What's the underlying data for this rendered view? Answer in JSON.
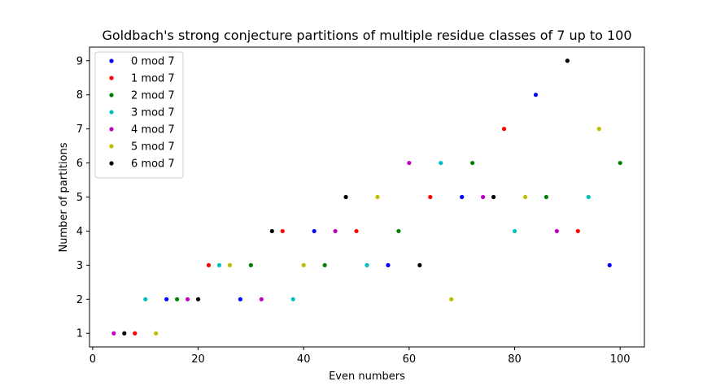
{
  "chart_data": {
    "type": "scatter",
    "title": "Goldbach's strong conjecture partitions of multiple residue classes of 7 up to 100",
    "xlabel": "Even numbers",
    "ylabel": "Number of partitions",
    "xlim": [
      -0.6,
      104.6
    ],
    "ylim": [
      0.6,
      9.4
    ],
    "xticks": [
      0,
      20,
      40,
      60,
      80,
      100
    ],
    "yticks": [
      1,
      2,
      3,
      4,
      5,
      6,
      7,
      8,
      9
    ],
    "grid": false,
    "legend_position": "top-left",
    "series": [
      {
        "name": "0 mod 7",
        "color": "#0000ff",
        "points": [
          [
            14,
            2
          ],
          [
            28,
            2
          ],
          [
            42,
            4
          ],
          [
            56,
            3
          ],
          [
            70,
            5
          ],
          [
            84,
            8
          ],
          [
            98,
            3
          ]
        ]
      },
      {
        "name": "1 mod 7",
        "color": "#ff0000",
        "points": [
          [
            8,
            1
          ],
          [
            22,
            3
          ],
          [
            36,
            4
          ],
          [
            50,
            4
          ],
          [
            64,
            5
          ],
          [
            78,
            7
          ],
          [
            92,
            4
          ]
        ]
      },
      {
        "name": "2 mod 7",
        "color": "#008000",
        "points": [
          [
            16,
            2
          ],
          [
            30,
            3
          ],
          [
            44,
            3
          ],
          [
            58,
            4
          ],
          [
            72,
            6
          ],
          [
            86,
            5
          ],
          [
            100,
            6
          ]
        ]
      },
      {
        "name": "3 mod 7",
        "color": "#00bfbf",
        "points": [
          [
            10,
            2
          ],
          [
            24,
            3
          ],
          [
            38,
            2
          ],
          [
            52,
            3
          ],
          [
            66,
            6
          ],
          [
            80,
            4
          ],
          [
            94,
            5
          ]
        ]
      },
      {
        "name": "4 mod 7",
        "color": "#bf00bf",
        "points": [
          [
            4,
            1
          ],
          [
            18,
            2
          ],
          [
            32,
            2
          ],
          [
            46,
            4
          ],
          [
            60,
            6
          ],
          [
            74,
            5
          ],
          [
            88,
            4
          ]
        ]
      },
      {
        "name": "5 mod 7",
        "color": "#bfbf00",
        "points": [
          [
            12,
            1
          ],
          [
            26,
            3
          ],
          [
            40,
            3
          ],
          [
            54,
            5
          ],
          [
            68,
            2
          ],
          [
            82,
            5
          ],
          [
            96,
            7
          ]
        ]
      },
      {
        "name": "6 mod 7",
        "color": "#000000",
        "points": [
          [
            6,
            1
          ],
          [
            20,
            2
          ],
          [
            34,
            4
          ],
          [
            48,
            5
          ],
          [
            62,
            3
          ],
          [
            76,
            5
          ],
          [
            90,
            9
          ]
        ]
      }
    ]
  }
}
